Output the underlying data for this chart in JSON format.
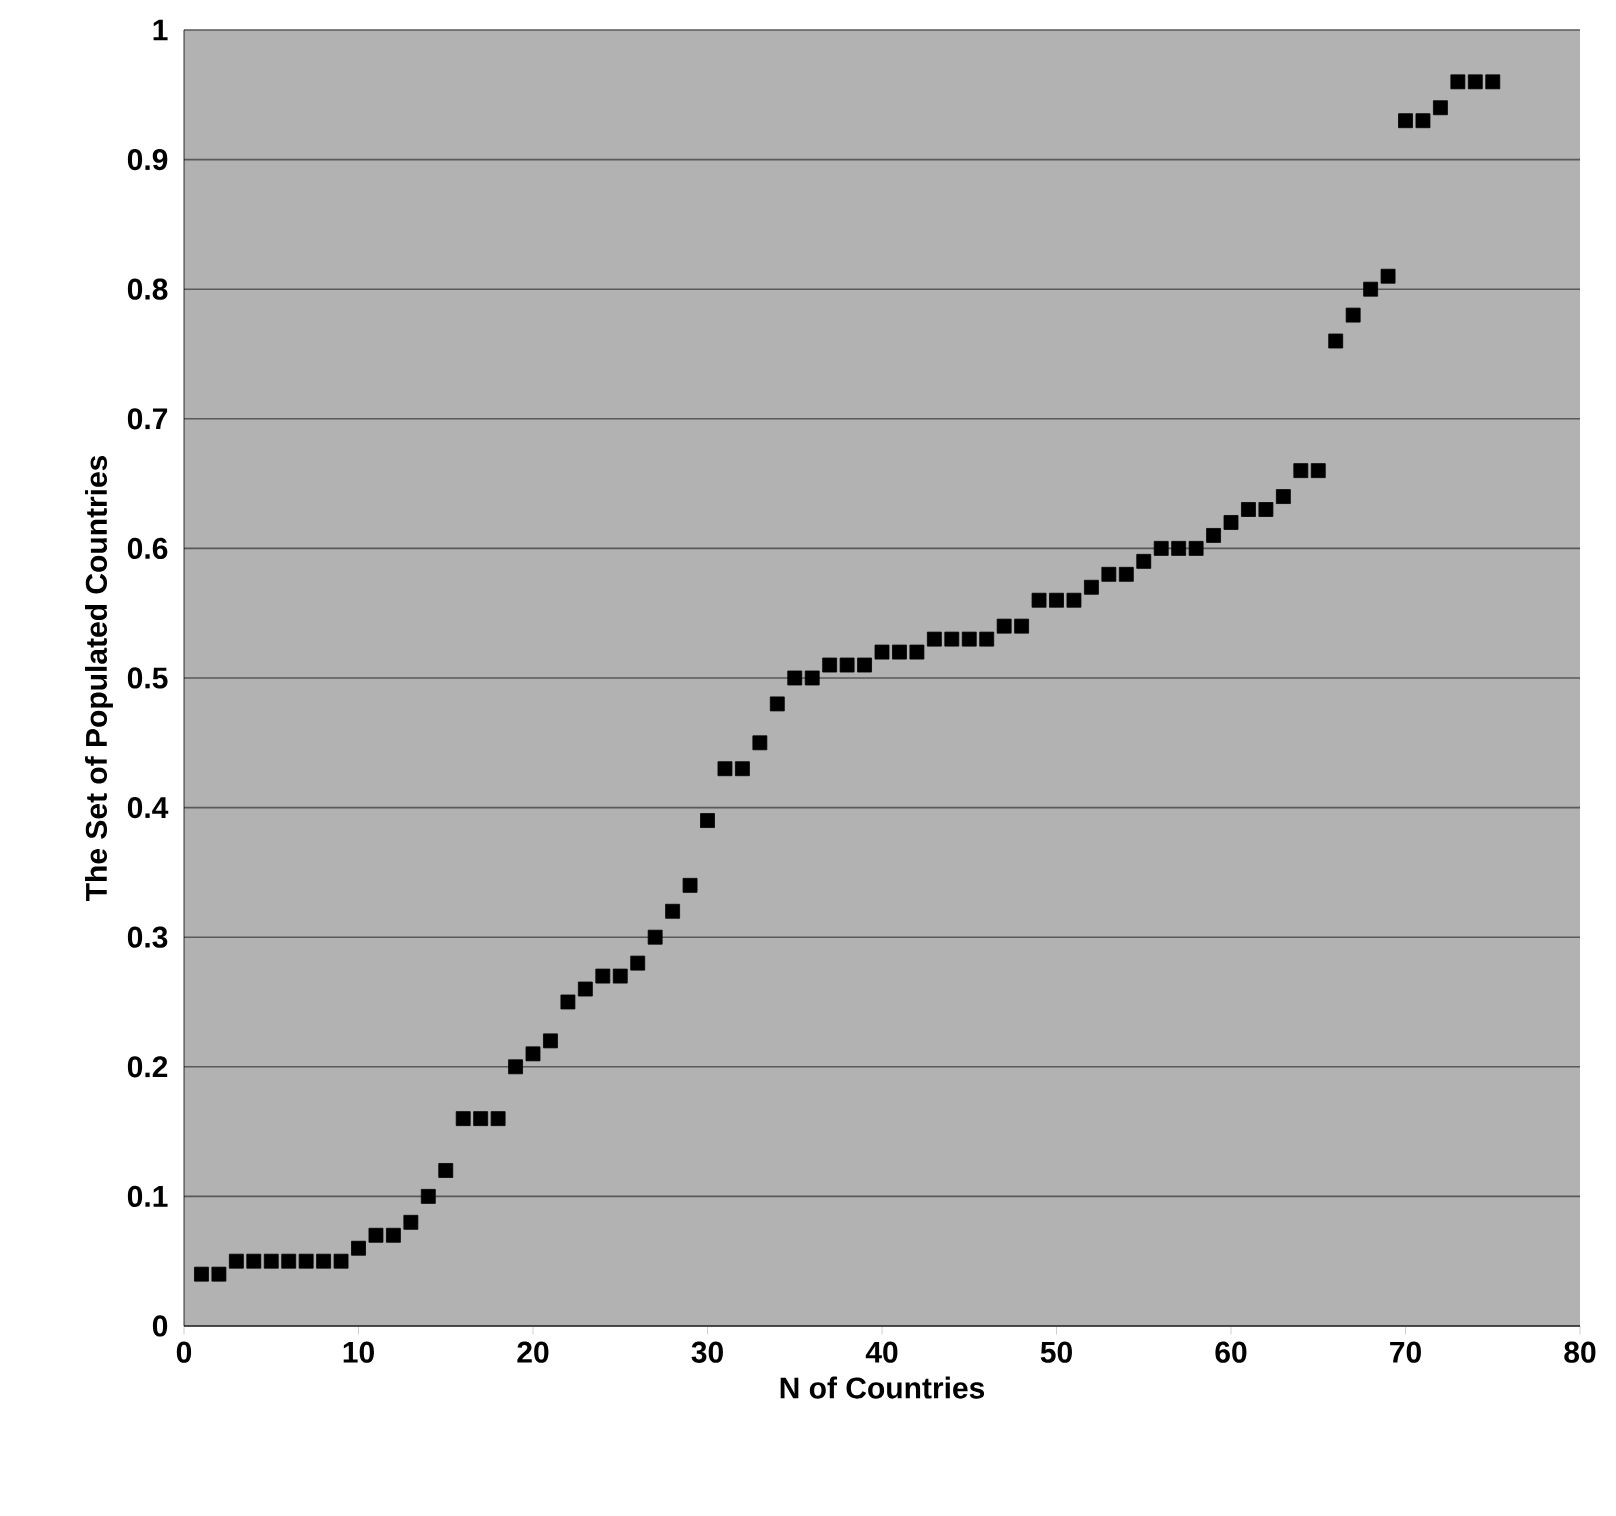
{
  "chart_data": {
    "type": "scatter",
    "xlabel": "N of Countries",
    "ylabel": "The Set of Populated Countries",
    "x": [
      1,
      2,
      3,
      4,
      5,
      6,
      7,
      8,
      9,
      10,
      11,
      12,
      13,
      14,
      15,
      16,
      17,
      18,
      19,
      20,
      21,
      22,
      23,
      24,
      25,
      26,
      27,
      28,
      29,
      30,
      31,
      32,
      33,
      34,
      35,
      36,
      37,
      38,
      39,
      40,
      41,
      42,
      43,
      44,
      45,
      46,
      47,
      48,
      49,
      50,
      51,
      52,
      53,
      54,
      55,
      56,
      57,
      58,
      59,
      60,
      61,
      62,
      63,
      64,
      65,
      66,
      67,
      68,
      69,
      70,
      71,
      72,
      73,
      74,
      75
    ],
    "values": [
      0.04,
      0.04,
      0.05,
      0.05,
      0.05,
      0.05,
      0.05,
      0.05,
      0.05,
      0.06,
      0.07,
      0.07,
      0.08,
      0.1,
      0.12,
      0.16,
      0.16,
      0.16,
      0.2,
      0.21,
      0.22,
      0.25,
      0.26,
      0.27,
      0.27,
      0.28,
      0.3,
      0.32,
      0.34,
      0.39,
      0.43,
      0.43,
      0.45,
      0.48,
      0.5,
      0.5,
      0.51,
      0.51,
      0.51,
      0.52,
      0.52,
      0.52,
      0.53,
      0.53,
      0.53,
      0.53,
      0.54,
      0.54,
      0.56,
      0.56,
      0.56,
      0.57,
      0.58,
      0.58,
      0.59,
      0.6,
      0.6,
      0.6,
      0.61,
      0.62,
      0.63,
      0.63,
      0.64,
      0.66,
      0.66,
      0.76,
      0.78,
      0.8,
      0.81,
      0.93,
      0.93,
      0.94,
      0.96,
      0.96,
      0.96
    ],
    "color": "#000000",
    "marker": "square",
    "grid": "y",
    "xlim": [
      0,
      80
    ],
    "xticks": [
      0,
      10,
      20,
      30,
      40,
      50,
      60,
      70,
      80
    ],
    "ylim": [
      0,
      1
    ],
    "yticks": [
      0,
      0.1,
      0.2,
      0.3,
      0.4,
      0.5,
      0.6,
      0.7,
      0.8,
      0.9,
      1
    ]
  }
}
